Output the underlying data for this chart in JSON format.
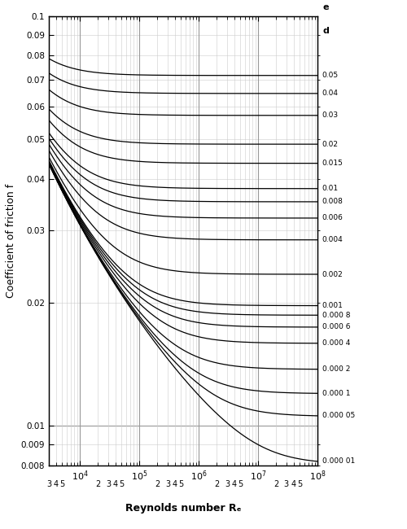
{
  "xlabel": "Reynolds number Rₑ",
  "ylabel": "Coefficient of friction f",
  "Re_min": 3000,
  "Re_max": 100000000.0,
  "f_min": 0.008,
  "f_max": 0.1,
  "roughness_values": [
    0.05,
    0.04,
    0.03,
    0.02,
    0.015,
    0.01,
    0.008,
    0.006,
    0.004,
    0.002,
    0.001,
    0.0008,
    0.0006,
    0.0004,
    0.0002,
    0.0001,
    5e-05,
    1e-05
  ],
  "roughness_labels": [
    "0.05",
    "0.04",
    "0.03",
    "0.02",
    "0.015",
    "0.01",
    "0.008",
    "0.006",
    "0.004",
    "0.002",
    "0.001",
    "0.000 8",
    "0.000 6",
    "0.000 4",
    "0.000 2",
    "0.000 1",
    "0.000 05",
    "0.000 01"
  ],
  "line_color": "#000000",
  "bg_color": "#ffffff",
  "grid_major_color": "#999999",
  "grid_minor_color": "#cccccc",
  "right_label_top": "e",
  "right_label_bot": "d",
  "figsize": [
    5.0,
    6.5
  ],
  "dpi": 100
}
